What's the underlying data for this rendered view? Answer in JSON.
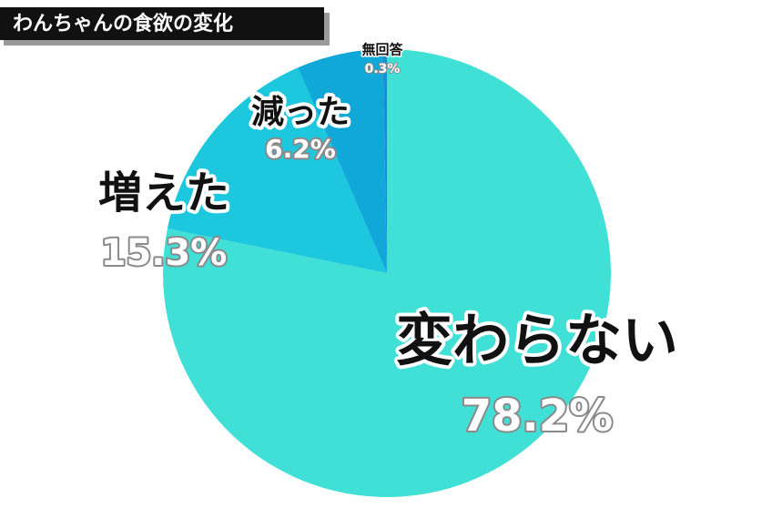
{
  "chart_data": {
    "type": "pie",
    "title": "わんちゃんの食欲の変化",
    "categories": [
      "変わらない",
      "増えた",
      "減った",
      "無回答"
    ],
    "values": [
      78.2,
      15.3,
      6.2,
      0.3
    ],
    "value_labels": [
      "78.2%",
      "15.3%",
      "6.2%",
      "0.3%"
    ],
    "colors": [
      "#40e0d6",
      "#1dc7dd",
      "#0fa8d9",
      "#1b8ecf"
    ]
  }
}
